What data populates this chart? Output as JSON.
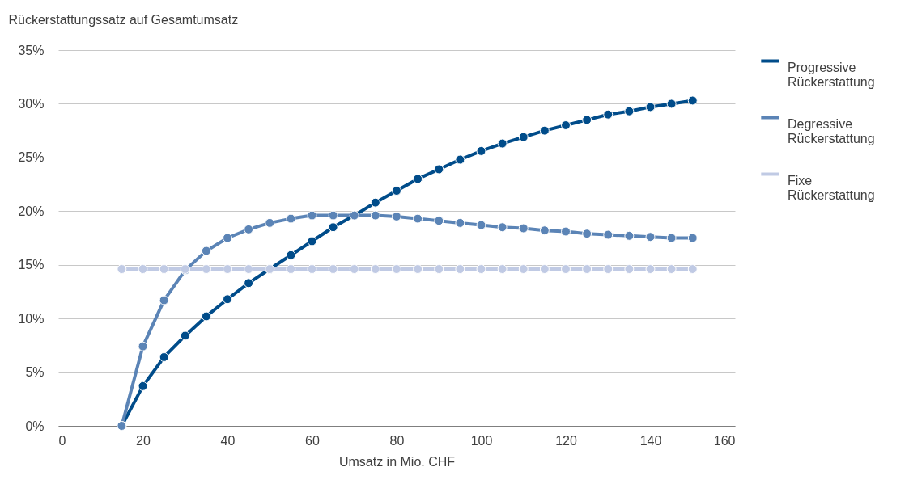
{
  "chart_data": {
    "type": "line",
    "ylabel": "Rückerstattungssatz auf Gesamtumsatz",
    "xlabel": "Umsatz in Mio. CHF",
    "x": [
      15,
      20,
      25,
      30,
      35,
      40,
      45,
      50,
      55,
      60,
      65,
      70,
      75,
      80,
      85,
      90,
      95,
      100,
      105,
      110,
      115,
      120,
      125,
      130,
      135,
      140,
      145,
      150
    ],
    "series": [
      {
        "name": "Progressive Rückerstattung",
        "color": "#004c8a",
        "values": [
          0,
          3.7,
          6.4,
          8.4,
          10.2,
          11.8,
          13.3,
          14.6,
          15.9,
          17.2,
          18.5,
          19.6,
          20.8,
          21.9,
          23.0,
          23.9,
          24.8,
          25.6,
          26.3,
          26.9,
          27.5,
          28.0,
          28.5,
          29.0,
          29.3,
          29.7,
          30.0,
          30.3
        ]
      },
      {
        "name": "Degressive Rückerstattung",
        "color": "#5b84b6",
        "values": [
          0,
          7.4,
          11.7,
          14.5,
          16.3,
          17.5,
          18.3,
          18.9,
          19.3,
          19.6,
          19.6,
          19.6,
          19.6,
          19.5,
          19.3,
          19.1,
          18.9,
          18.7,
          18.5,
          18.4,
          18.2,
          18.1,
          17.9,
          17.8,
          17.7,
          17.6,
          17.5,
          17.5
        ]
      },
      {
        "name": "Fixe Rückerstattung",
        "color": "#c0cae4",
        "values": [
          14.6,
          14.6,
          14.6,
          14.6,
          14.6,
          14.6,
          14.6,
          14.6,
          14.6,
          14.6,
          14.6,
          14.6,
          14.6,
          14.6,
          14.6,
          14.6,
          14.6,
          14.6,
          14.6,
          14.6,
          14.6,
          14.6,
          14.6,
          14.6,
          14.6,
          14.6,
          14.6,
          14.6
        ]
      }
    ],
    "xlim": [
      0,
      160
    ],
    "xticks": [
      0,
      20,
      40,
      60,
      80,
      100,
      120,
      140,
      160
    ],
    "ylim": [
      0,
      35
    ],
    "yticks": [
      {
        "value": 0,
        "label": "0%"
      },
      {
        "value": 5,
        "label": "5%"
      },
      {
        "value": 10,
        "label": "10%"
      },
      {
        "value": 15,
        "label": "15%"
      },
      {
        "value": 20,
        "label": "20%"
      },
      {
        "value": 25,
        "label": "25%"
      },
      {
        "value": 30,
        "label": "30%"
      },
      {
        "value": 35,
        "label": "35%"
      }
    ],
    "grid": "y",
    "legend": "right",
    "marker": "circle",
    "line_style": "solid"
  }
}
